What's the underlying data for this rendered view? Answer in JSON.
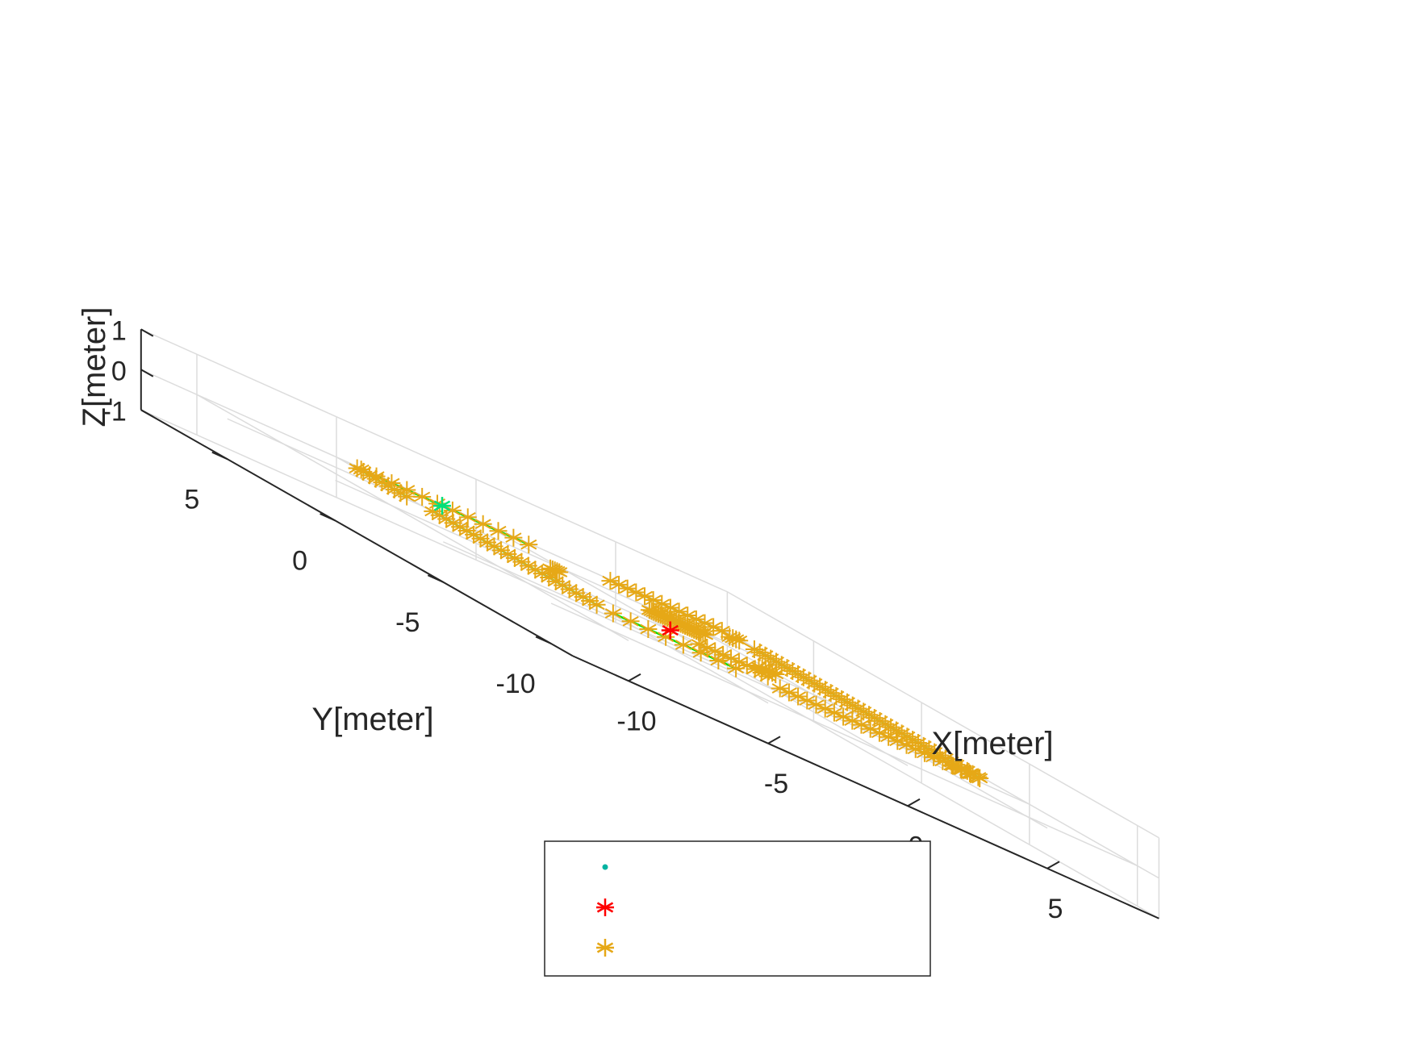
{
  "chart_data": {
    "type": "scatter",
    "dimensions": 3,
    "title": "",
    "xlabel": "X[meter]",
    "ylabel": "Y[meter]",
    "zlabel": "Z[meter]",
    "xlim": [
      -12,
      9
    ],
    "ylim": [
      -11,
      9
    ],
    "zlim": [
      -1,
      1
    ],
    "xticks": [
      "-10",
      "-5",
      "0",
      "5"
    ],
    "yticks": [
      "-10",
      "-5",
      "0",
      "5"
    ],
    "zticks": [
      "-1",
      "0",
      "1"
    ],
    "grid": true,
    "legend": {
      "placement": "bottom-center",
      "entries": [
        "",
        "",
        ""
      ]
    },
    "colors": {
      "fitted_line": "#00e000",
      "robot": "#00b3a1",
      "origin": "#ff0000",
      "landmark": "#e6a817",
      "highlight": "#00e07a"
    },
    "origin_marker": {
      "x": 0,
      "y": 0,
      "z": 0
    },
    "highlight_marker": {
      "x": -1.6,
      "y": 8.5,
      "z": 0
    },
    "series": [
      {
        "name": "",
        "marker": "asterisk",
        "segments": [
          {
            "from": [
              -4.5,
              8.5
            ],
            "to": [
              1.5,
              8.5
            ],
            "n": 12
          },
          {
            "from": [
              -4.8,
              8.3
            ],
            "to": [
              -4.8,
              6.0
            ],
            "n": 9
          },
          {
            "from": [
              -4.8,
              4.8
            ],
            "to": [
              -4.8,
              -2.8
            ],
            "n": 25
          },
          {
            "from": [
              -4.6,
              -3.3
            ],
            "to": [
              -0.2,
              -3.3
            ],
            "n": 8
          },
          {
            "from": [
              4.5,
              8.6
            ],
            "to": [
              8.5,
              8.6
            ],
            "n": 14
          },
          {
            "from": [
              8.5,
              7.8
            ],
            "to": [
              8.0,
              7.6
            ],
            "n": 4
          },
          {
            "from": [
              8.5,
              7.1
            ],
            "to": [
              8.4,
              -3.4
            ],
            "n": 42
          },
          {
            "from": [
              8.3,
              -3.6
            ],
            "to": [
              7.5,
              -3.4
            ],
            "n": 4
          },
          {
            "from": [
              1.3,
              -3.4
            ],
            "to": [
              8.1,
              -3.4
            ],
            "n": 22
          },
          {
            "from": [
              0.8,
              -0.3
            ],
            "to": [
              2.8,
              -0.3
            ],
            "n": 8
          },
          {
            "from": [
              2.8,
              -0.3
            ],
            "to": [
              2.8,
              -0.9
            ],
            "n": 3
          },
          {
            "from": [
              -1.9,
              3.1
            ],
            "to": [
              -1.5,
              3.2
            ],
            "n": 5
          },
          {
            "from": [
              2.5,
              4.2
            ],
            "to": [
              4.5,
              4.2
            ],
            "n": 26
          },
          {
            "from": [
              4.1,
              1.2
            ],
            "to": [
              4.7,
              1.2
            ],
            "n": 6
          }
        ]
      }
    ],
    "fitted_lines": [
      {
        "from": [
          -4.5,
          8.5
        ],
        "to": [
          1.5,
          8.5
        ]
      },
      {
        "from": [
          -4.8,
          8.3
        ],
        "to": [
          -4.8,
          6.0
        ]
      },
      {
        "from": [
          -4.8,
          4.8
        ],
        "to": [
          -4.8,
          -3.0
        ]
      },
      {
        "from": [
          -4.6,
          -3.3
        ],
        "to": [
          -0.2,
          -3.3
        ]
      },
      {
        "from": [
          4.5,
          8.6
        ],
        "to": [
          8.5,
          8.6
        ]
      },
      {
        "from": [
          8.5,
          7.1
        ],
        "to": [
          8.4,
          -3.4
        ]
      },
      {
        "from": [
          8.3,
          -3.6
        ],
        "to": [
          7.5,
          -3.4
        ]
      },
      {
        "from": [
          1.3,
          -3.4
        ],
        "to": [
          8.1,
          -3.4
        ]
      },
      {
        "from": [
          0.8,
          -0.3
        ],
        "to": [
          2.8,
          -0.3
        ]
      },
      {
        "from": [
          2.8,
          -0.3
        ],
        "to": [
          2.8,
          -0.7
        ]
      },
      {
        "from": [
          -1.9,
          3.1
        ],
        "to": [
          -1.5,
          3.3
        ]
      },
      {
        "from": [
          2.6,
          4.2
        ],
        "to": [
          4.4,
          4.2
        ]
      },
      {
        "from": [
          4.1,
          1.2
        ],
        "to": [
          4.7,
          1.3
        ]
      }
    ]
  }
}
